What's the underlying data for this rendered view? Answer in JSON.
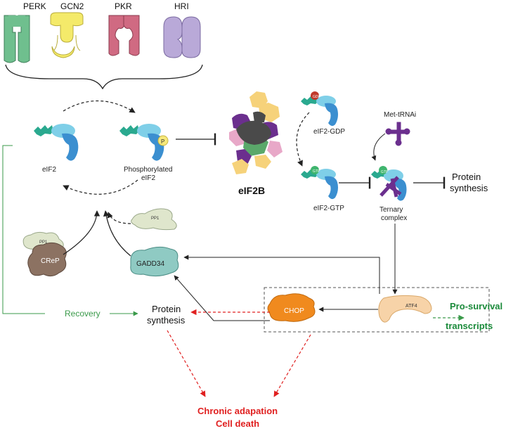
{
  "kinases": [
    "PERK",
    "GCN2",
    "PKR",
    "HRI"
  ],
  "colors": {
    "perk": "#6fbf8e",
    "gcn2": "#f4ea6a",
    "pkr": "#d06a82",
    "hri": "#b9a9d8",
    "eif2_light": "#7fcfe8",
    "eif2_dark": "#3b8fd0",
    "teal": "#2aa98f",
    "recovery_green": "#3a9a4a",
    "survival_green": "#1a8a3a",
    "death_red": "#e02020",
    "chop_orange": "#f08a1e",
    "atf4_peach": "#f7d3a8",
    "gadd34_teal": "#8fcac3",
    "crep_brown": "#8c7262",
    "pp1_pale": "#dfe6cc",
    "trna_purple": "#6b2f8e"
  },
  "labels": {
    "eif2": "eIF2",
    "phosphorylated_eif2": [
      "Phosphorylated",
      "eIF2"
    ],
    "phospho_symbol": "P",
    "eif2b": "eIF2B",
    "eif2_gdp": "eIF2-GDP",
    "eif2_gtp": "eIF2-GTP",
    "gdp_tag": "GDP",
    "gtp_tag": "GTP",
    "met_trna": "Met-tRNAi",
    "ternary_complex": [
      "Ternary",
      "complex"
    ],
    "protein_synthesis_right": [
      "Protein",
      "synthesis"
    ],
    "protein_synthesis_left": [
      "Protein",
      "synthesis"
    ],
    "pp1": "PP1",
    "crep": "CReP",
    "gadd34": "GADD34",
    "chop": "CHOP",
    "atf4": "ATF4",
    "recovery": "Recovery",
    "pro_survival": [
      "Pro-survival",
      "transcripts"
    ],
    "outcome": [
      "Chronic adapation",
      "Cell death"
    ]
  }
}
